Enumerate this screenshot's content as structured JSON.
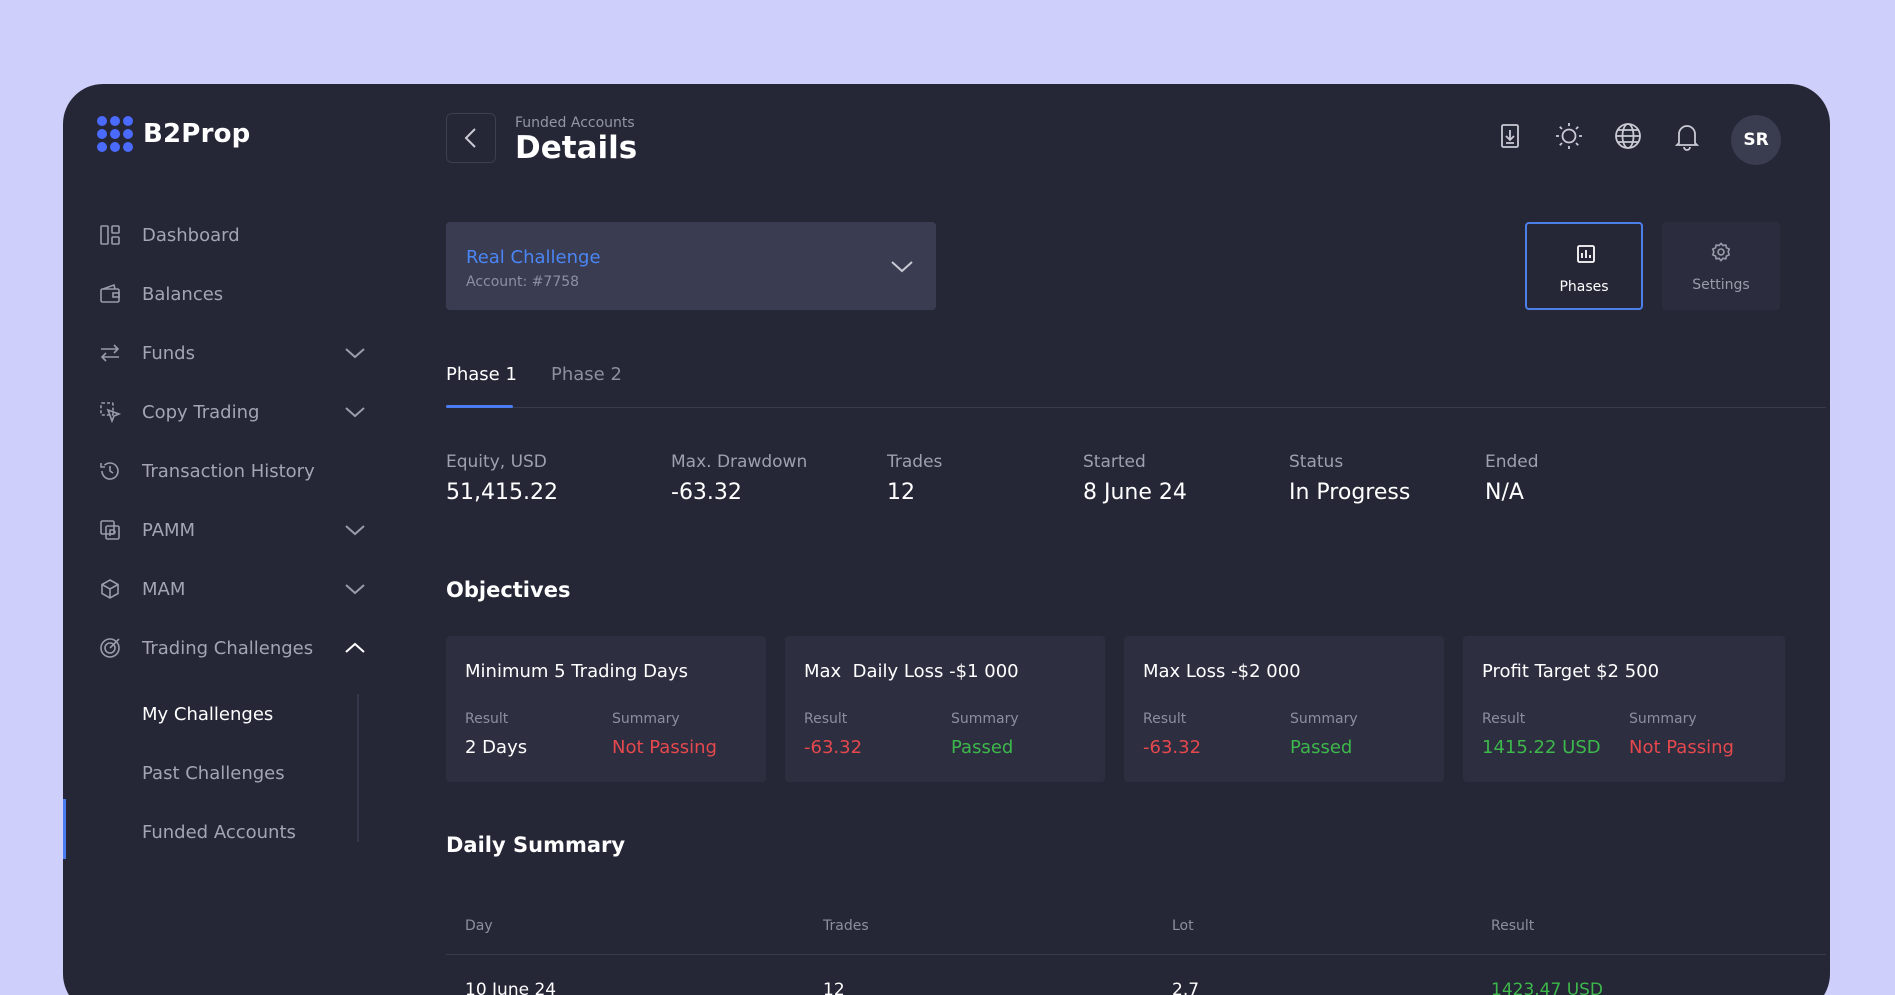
{
  "brand": {
    "name": "B2Prop",
    "accent": "#4b6bff"
  },
  "sidebar": {
    "items": [
      {
        "label": "Dashboard",
        "icon": "dashboard-icon",
        "chevron": null
      },
      {
        "label": "Balances",
        "icon": "wallet-icon",
        "chevron": null
      },
      {
        "label": "Funds",
        "icon": "transfer-icon",
        "chevron": "down"
      },
      {
        "label": "Copy Trading",
        "icon": "copy-trading-icon",
        "chevron": "down"
      },
      {
        "label": "Transaction History",
        "icon": "history-icon",
        "chevron": null
      },
      {
        "label": "PAMM",
        "icon": "pamm-icon",
        "chevron": "down"
      },
      {
        "label": "MAM",
        "icon": "cube-icon",
        "chevron": "down"
      },
      {
        "label": "Trading Challenges",
        "icon": "target-icon",
        "chevron": "up"
      }
    ],
    "sub_items": [
      {
        "label": "My Challenges",
        "active": true
      },
      {
        "label": "Past Challenges",
        "active": false
      },
      {
        "label": "Funded Accounts",
        "active": false
      }
    ]
  },
  "header": {
    "breadcrumb": "Funded Accounts",
    "title": "Details",
    "icons": [
      "download-icon",
      "sun-icon",
      "globe-icon",
      "bell-icon"
    ],
    "avatar_initials": "SR"
  },
  "account": {
    "name": "Real Challenge",
    "number": "Account: #7758"
  },
  "toolbar": {
    "phases_label": "Phases",
    "settings_label": "Settings"
  },
  "tabs": [
    {
      "label": "Phase 1",
      "active": true
    },
    {
      "label": "Phase 2",
      "active": false
    }
  ],
  "stats": [
    {
      "label": "Equity, USD",
      "value": "51,415.22"
    },
    {
      "label": "Max. Drawdown",
      "value": "-63.32"
    },
    {
      "label": "Trades",
      "value": "12"
    },
    {
      "label": "Started",
      "value": "8 June 24"
    },
    {
      "label": "Status",
      "value": "In Progress"
    },
    {
      "label": "Ended",
      "value": "N/A"
    }
  ],
  "objectives": {
    "title": "Objectives",
    "result_label": "Result",
    "summary_label": "Summary",
    "cards": [
      {
        "title": "Minimum 5 Trading Days",
        "result": "2 Days",
        "result_color": "#ffffff",
        "summary": "Not Passing",
        "summary_color": "#e5484d"
      },
      {
        "title": "Max  Daily Loss -$1 000",
        "result": "-63.32",
        "result_color": "#e5484d",
        "summary": "Passed",
        "summary_color": "#3db84a"
      },
      {
        "title": "Max Loss -$2 000",
        "result": "-63.32",
        "result_color": "#e5484d",
        "summary": "Passed",
        "summary_color": "#3db84a"
      },
      {
        "title": "Profit Target $2 500",
        "result": "1415.22 USD",
        "result_color": "#3db84a",
        "summary": "Not Passing",
        "summary_color": "#e5484d"
      }
    ]
  },
  "daily_summary": {
    "title": "Daily Summary",
    "columns": [
      "Day",
      "Trades",
      "Lot",
      "Result"
    ],
    "rows": [
      {
        "day": "10 June 24",
        "trades": "12",
        "lot": "2.7",
        "result": "1423.47 USD"
      }
    ]
  }
}
